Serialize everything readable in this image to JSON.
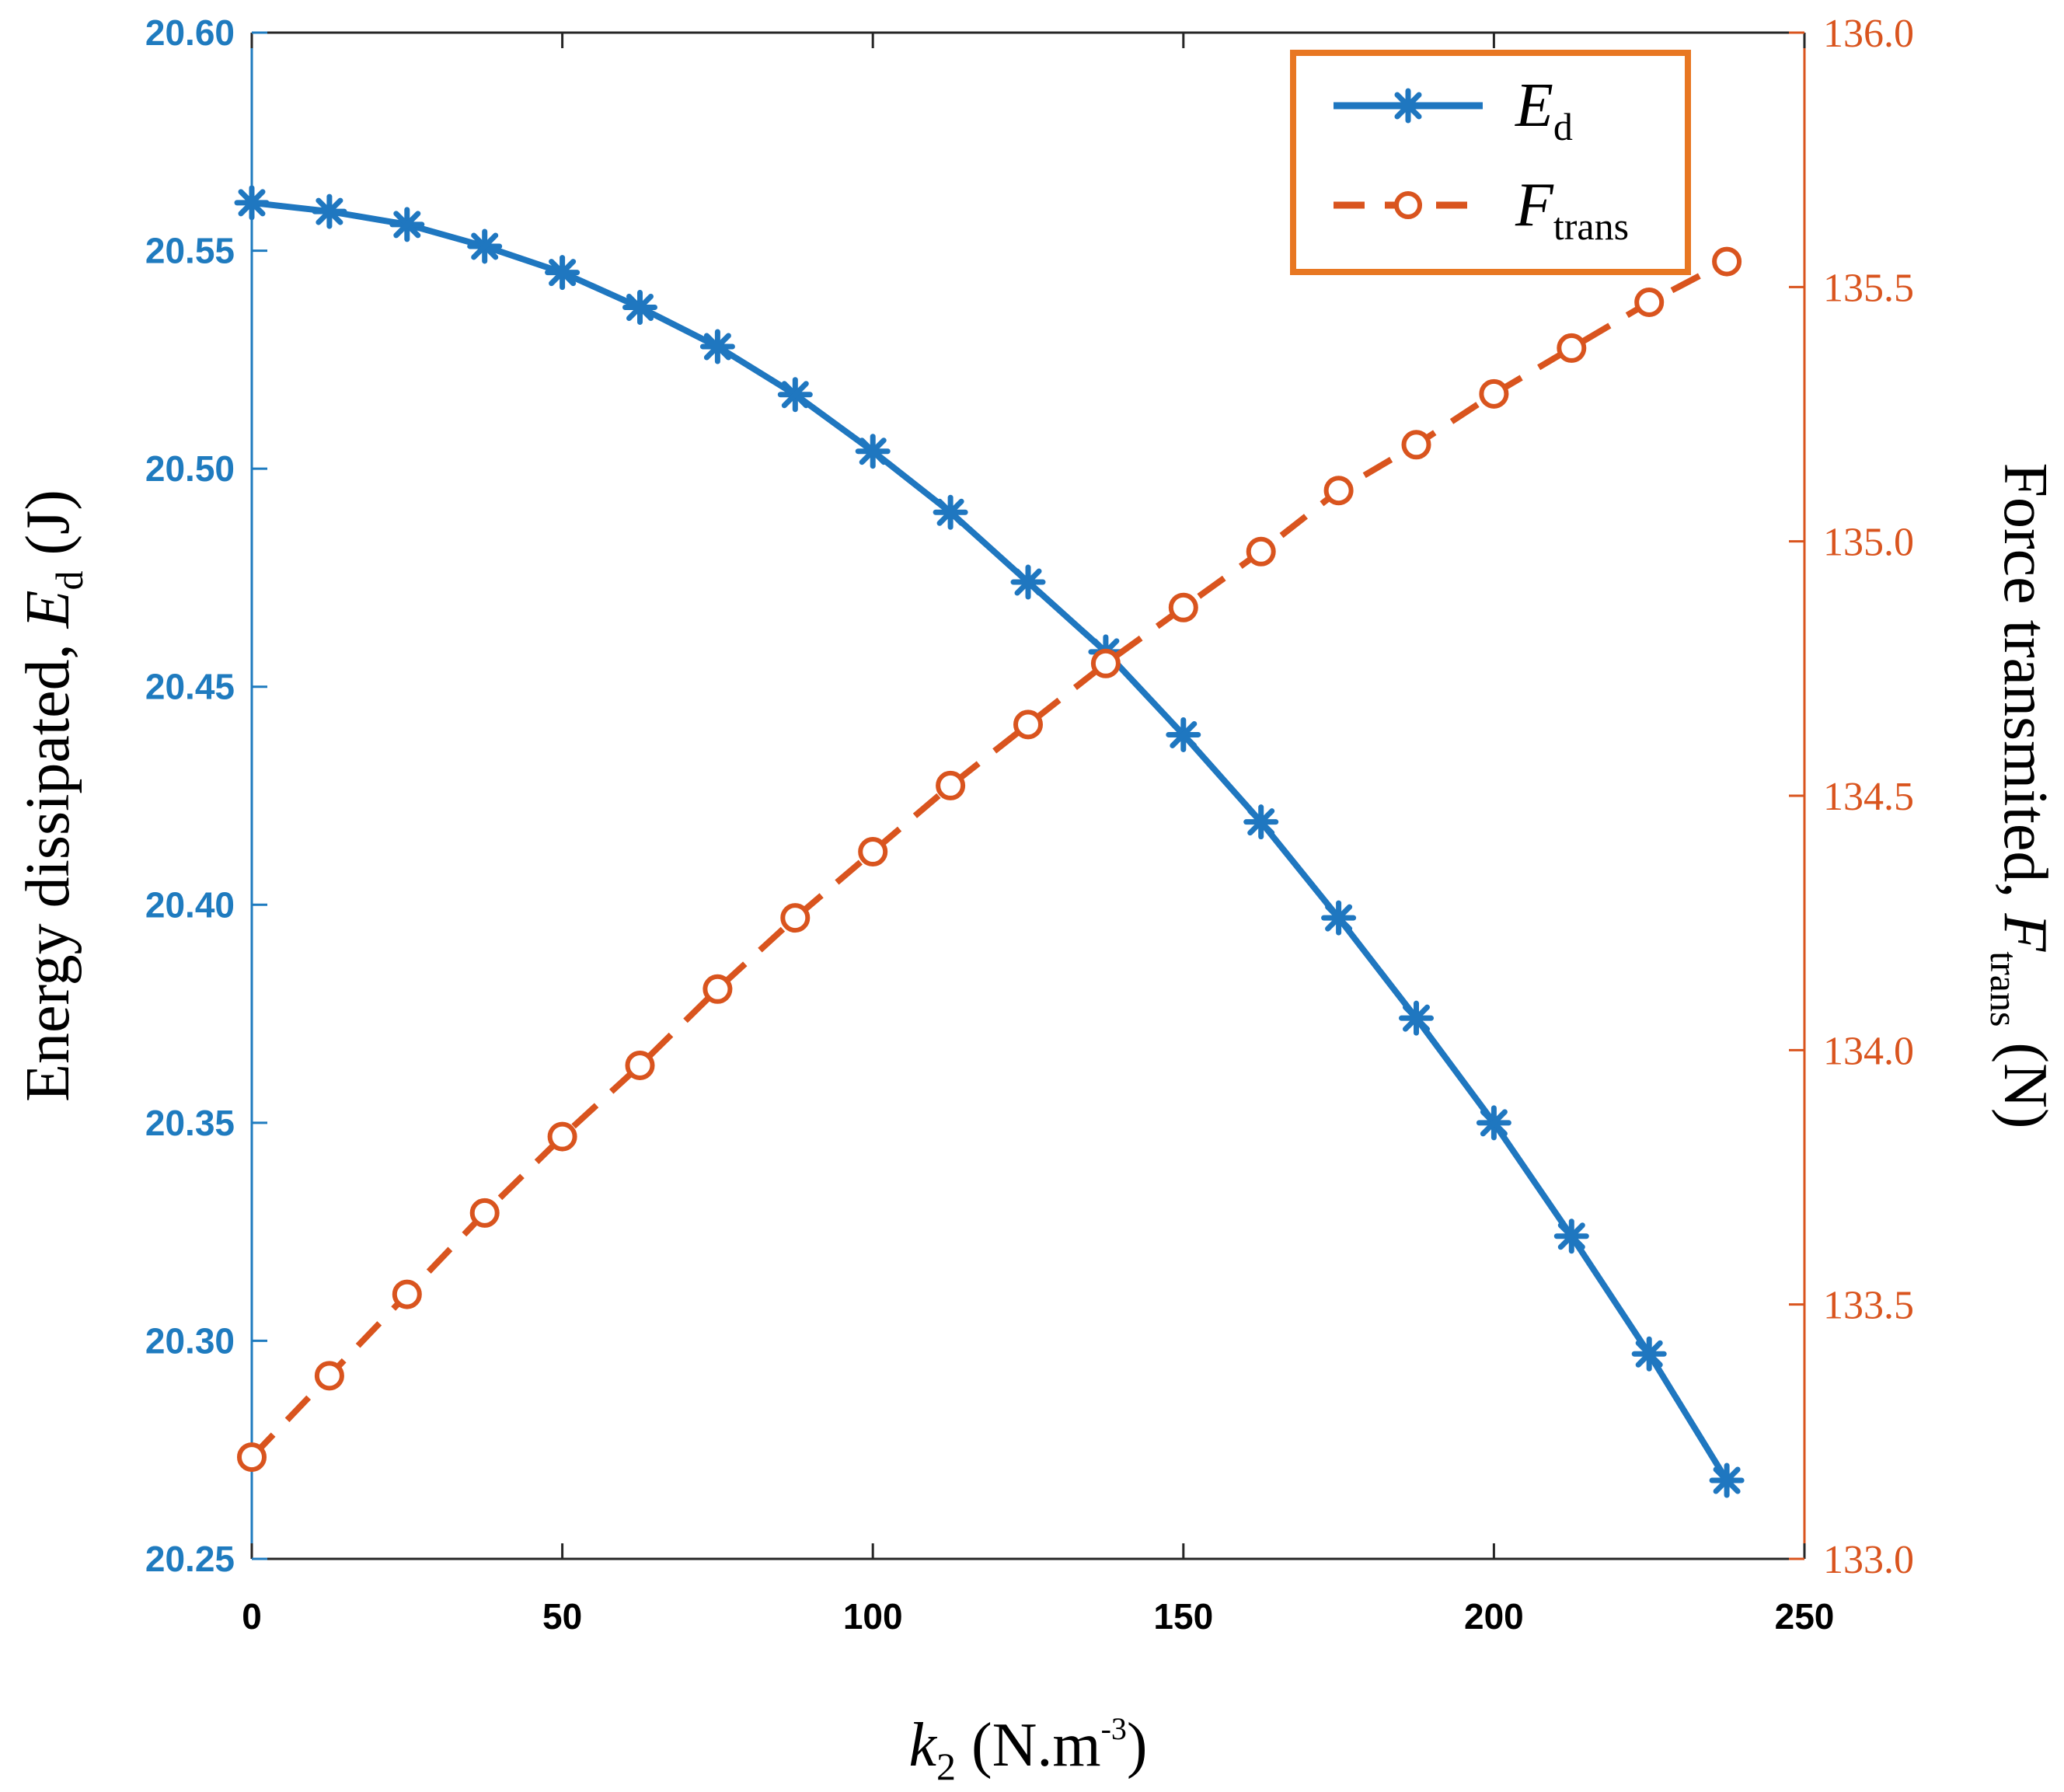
{
  "chart_data": {
    "type": "line",
    "x": [
      0,
      12.5,
      25,
      37.5,
      50,
      62.5,
      75,
      87.5,
      100,
      112.5,
      125,
      137.5,
      150,
      162.5,
      175,
      187.5,
      200,
      212.5,
      225,
      237.5
    ],
    "series": [
      {
        "name": "E_d",
        "axis": "left",
        "color": "#1f77c0",
        "marker": "asterisk",
        "line_style": "solid",
        "values": [
          20.561,
          20.559,
          20.556,
          20.551,
          20.545,
          20.537,
          20.528,
          20.517,
          20.504,
          20.49,
          20.474,
          20.458,
          20.439,
          20.419,
          20.397,
          20.374,
          20.35,
          20.324,
          20.297,
          20.268
        ]
      },
      {
        "name": "F_trans",
        "axis": "right",
        "color": "#d9541e",
        "marker": "circle",
        "line_style": "dashed",
        "values": [
          133.2,
          133.36,
          133.52,
          133.68,
          133.83,
          133.97,
          134.12,
          134.26,
          134.39,
          134.52,
          134.64,
          134.76,
          134.87,
          134.98,
          135.1,
          135.19,
          135.29,
          135.38,
          135.47,
          135.55
        ]
      }
    ],
    "xlim": [
      0,
      250
    ],
    "ylim_left": [
      20.25,
      20.6
    ],
    "ylim_right": [
      133.0,
      136.0
    ],
    "xticks": [
      "0",
      "50",
      "100",
      "150",
      "200",
      "250"
    ],
    "yticks_left": [
      "20.25",
      "20.30",
      "20.35",
      "20.40",
      "20.45",
      "20.50",
      "20.55",
      "20.60"
    ],
    "yticks_right": [
      "133.0",
      "133.5",
      "134.0",
      "134.5",
      "135.0",
      "135.5",
      "136.0"
    ],
    "xlabel": {
      "symbol": "k",
      "subscript": "2",
      "unit_prefix": " (N.m",
      "superscript": "-3",
      "unit_suffix": ")"
    },
    "ylabel_left": {
      "prefix": "Energy dissipated, ",
      "symbol": "E",
      "subscript": "d",
      "suffix": " (J)"
    },
    "ylabel_right": {
      "prefix": "Force transmited, ",
      "symbol": "F",
      "subscript": "trans",
      "suffix": " (N)"
    },
    "legend": {
      "position": "top-right",
      "border_color": "#e87722",
      "entries": [
        {
          "symbol": "E",
          "subscript": "d"
        },
        {
          "symbol": "F",
          "subscript": "trans"
        }
      ]
    },
    "grid": false,
    "axis_colors": {
      "left": "#1f7bbf",
      "right": "#d9541e"
    }
  }
}
